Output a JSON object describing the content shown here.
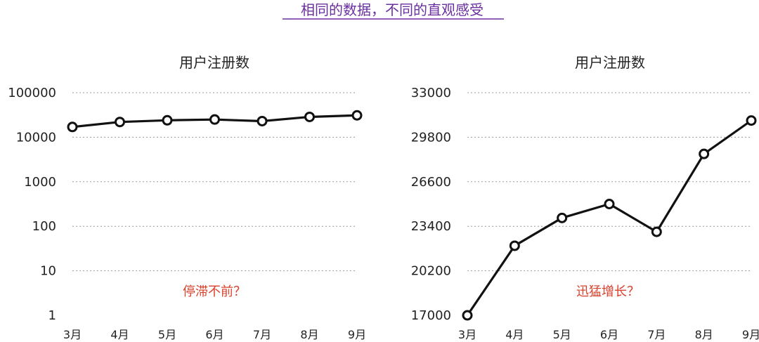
{
  "main_title": "相同的数据，不同的直观感受",
  "colors": {
    "title": "#6a2fa0",
    "note": "#d9402b",
    "line": "#111111"
  },
  "chart_data": [
    {
      "type": "line",
      "title": "用户注册数",
      "scale": "log",
      "categories": [
        "3月",
        "4月",
        "5月",
        "6月",
        "7月",
        "8月",
        "9月"
      ],
      "values": [
        17000,
        22000,
        24000,
        25000,
        23000,
        28600,
        31000
      ],
      "yticks": [
        "1",
        "10",
        "100",
        "1000",
        "10000",
        "100000"
      ],
      "ylim": [
        1,
        100000
      ],
      "grid": true,
      "annotation": "停滞不前？"
    },
    {
      "type": "line",
      "title": "用户注册数",
      "scale": "linear",
      "categories": [
        "3月",
        "4月",
        "5月",
        "6月",
        "7月",
        "8月",
        "9月"
      ],
      "values": [
        17000,
        22000,
        24000,
        25000,
        23000,
        28600,
        31000
      ],
      "yticks": [
        "17000",
        "20200",
        "23400",
        "26600",
        "29800",
        "33000"
      ],
      "ylim": [
        17000,
        33000
      ],
      "grid": true,
      "annotation": "迅猛增长？"
    }
  ]
}
